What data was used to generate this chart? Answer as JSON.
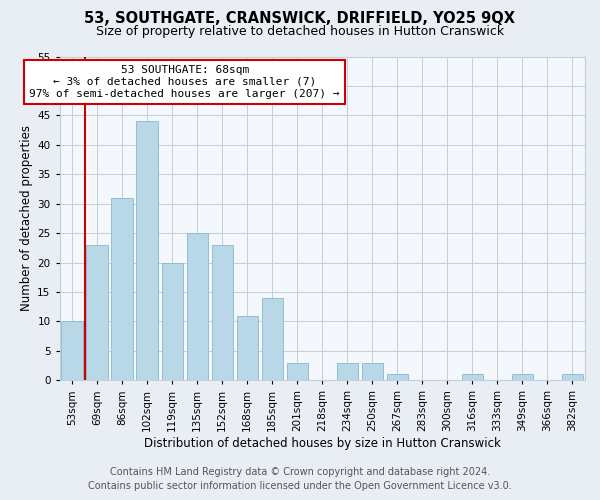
{
  "title": "53, SOUTHGATE, CRANSWICK, DRIFFIELD, YO25 9QX",
  "subtitle": "Size of property relative to detached houses in Hutton Cranswick",
  "xlabel": "Distribution of detached houses by size in Hutton Cranswick",
  "ylabel": "Number of detached properties",
  "bar_color": "#b8d8e8",
  "bar_edge_color": "#8ab8cc",
  "categories": [
    "53sqm",
    "69sqm",
    "86sqm",
    "102sqm",
    "119sqm",
    "135sqm",
    "152sqm",
    "168sqm",
    "185sqm",
    "201sqm",
    "218sqm",
    "234sqm",
    "250sqm",
    "267sqm",
    "283sqm",
    "300sqm",
    "316sqm",
    "333sqm",
    "349sqm",
    "366sqm",
    "382sqm"
  ],
  "values": [
    10,
    23,
    31,
    44,
    20,
    25,
    23,
    11,
    14,
    3,
    0,
    3,
    3,
    1,
    0,
    0,
    1,
    0,
    1,
    0,
    1
  ],
  "ylim": [
    0,
    55
  ],
  "yticks": [
    0,
    5,
    10,
    15,
    20,
    25,
    30,
    35,
    40,
    45,
    50,
    55
  ],
  "annotation_text_line1": "53 SOUTHGATE: 68sqm",
  "annotation_text_line2": "← 3% of detached houses are smaller (7)",
  "annotation_text_line3": "97% of semi-detached houses are larger (207) →",
  "highlight_color": "#cc0000",
  "footer_line1": "Contains HM Land Registry data © Crown copyright and database right 2024.",
  "footer_line2": "Contains public sector information licensed under the Open Government Licence v3.0.",
  "background_color": "#e8eef4",
  "plot_background_color": "#f4f8fc",
  "grid_color": "#c0cfe0",
  "title_fontsize": 10.5,
  "subtitle_fontsize": 9,
  "axis_label_fontsize": 8.5,
  "tick_fontsize": 7.5,
  "footer_fontsize": 7
}
